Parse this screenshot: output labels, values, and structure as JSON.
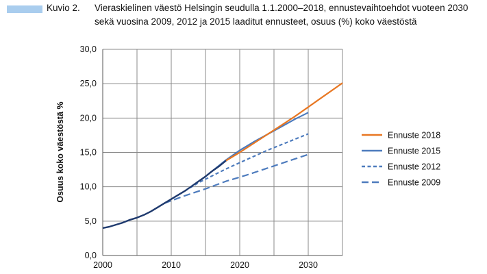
{
  "caption": {
    "number": "Kuvio 2.",
    "text": "Vieraskielinen väestö Helsingin seudulla 1.1.2000–2018, ennustevaihtoehdot vuoteen 2030 sekä vuosina 2009, 2012 ja 2015 laaditut ennusteet, osuus (%) koko väestöstä",
    "marker_color": "#a9cdee"
  },
  "chart_data": {
    "type": "line",
    "title": "",
    "xlabel": "",
    "ylabel": "Osuus koko väestöstä %",
    "xlim": [
      2000,
      2035
    ],
    "ylim": [
      0,
      30
    ],
    "xticks": [
      2000,
      2010,
      2020,
      2030
    ],
    "xtick_labels": [
      "2000",
      "2010",
      "2020",
      "2030"
    ],
    "yticks": [
      0,
      5,
      10,
      15,
      20,
      25,
      30
    ],
    "ytick_labels": [
      "0,0",
      "5,0",
      "10,0",
      "15,0",
      "20,0",
      "25,0",
      "30,0"
    ],
    "grid": true,
    "legend_position": "right",
    "observed": {
      "color": "#1f3a6e",
      "x": [
        2000,
        2001,
        2002,
        2003,
        2004,
        2005,
        2006,
        2007,
        2008,
        2009,
        2010,
        2011,
        2012,
        2013,
        2014,
        2015,
        2016,
        2017,
        2018
      ],
      "y": [
        4.0,
        4.2,
        4.5,
        4.8,
        5.2,
        5.5,
        5.9,
        6.4,
        7.0,
        7.6,
        8.2,
        8.8,
        9.4,
        10.1,
        10.8,
        11.5,
        12.3,
        13.0,
        13.8
      ]
    },
    "series": [
      {
        "name": "Ennuste 2018",
        "color": "#e87722",
        "dash": "solid",
        "x": [
          2018,
          2020,
          2022,
          2024,
          2026,
          2028,
          2030,
          2032,
          2035
        ],
        "y": [
          13.8,
          15.0,
          16.3,
          17.6,
          18.9,
          20.2,
          21.6,
          23.0,
          25.1
        ]
      },
      {
        "name": "Ennuste 2015",
        "color": "#4d7bbd",
        "dash": "solid",
        "x": [
          2015,
          2016,
          2018,
          2020,
          2022,
          2024,
          2026,
          2028,
          2030
        ],
        "y": [
          11.5,
          12.3,
          13.9,
          15.3,
          16.5,
          17.6,
          18.7,
          19.8,
          20.8
        ]
      },
      {
        "name": "Ennuste 2012",
        "color": "#4d7bbd",
        "dash": "short",
        "x": [
          2012,
          2014,
          2016,
          2018,
          2020,
          2022,
          2024,
          2026,
          2028,
          2030
        ],
        "y": [
          9.4,
          10.6,
          11.6,
          12.6,
          13.5,
          14.4,
          15.3,
          16.1,
          16.9,
          17.7
        ]
      },
      {
        "name": "Ennuste 2009",
        "color": "#4d7bbd",
        "dash": "long",
        "x": [
          2009,
          2012,
          2015,
          2018,
          2021,
          2024,
          2027,
          2030
        ],
        "y": [
          7.6,
          8.7,
          9.7,
          10.8,
          11.7,
          12.7,
          13.7,
          14.7
        ]
      }
    ]
  }
}
